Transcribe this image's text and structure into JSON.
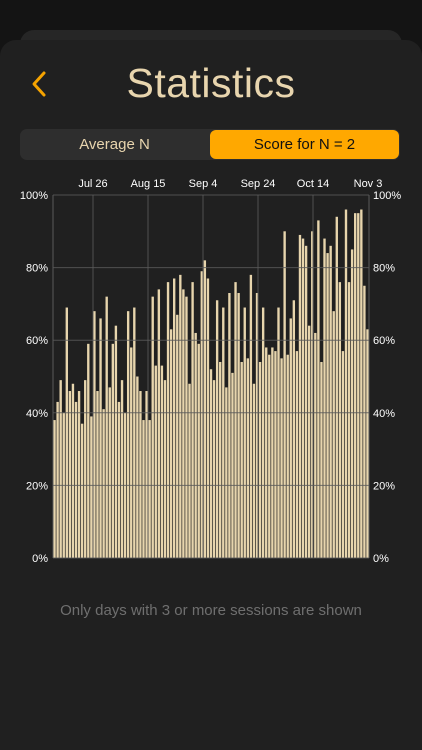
{
  "header": {
    "title": "Statistics",
    "back_icon": "chevron-left-icon"
  },
  "segments": [
    {
      "label": "Average N",
      "selected": false
    },
    {
      "label": "Score for N = 2",
      "selected": true
    }
  ],
  "footnote": "Only days with 3 or more sessions are shown",
  "colors": {
    "accent": "#FFA800",
    "bar": "#E7D5AD",
    "title": "#E8D5AE"
  },
  "chart_data": {
    "type": "bar",
    "x_tick_labels": [
      "Jul 26",
      "Aug 15",
      "Sep 4",
      "Sep 24",
      "Oct 14",
      "Nov 3"
    ],
    "y_tick_labels": [
      "0%",
      "20%",
      "40%",
      "60%",
      "80%",
      "100%"
    ],
    "ylim": [
      0,
      100
    ],
    "grid": true,
    "values": [
      38,
      43,
      49,
      40,
      69,
      46,
      48,
      43,
      46,
      37,
      49,
      59,
      39,
      68,
      46,
      66,
      41,
      72,
      47,
      59,
      64,
      43,
      49,
      40,
      68,
      58,
      69,
      50,
      46,
      38,
      46,
      38,
      72,
      53,
      74,
      53,
      49,
      76,
      63,
      77,
      67,
      78,
      74,
      72,
      48,
      76,
      62,
      59,
      79,
      82,
      77,
      52,
      49,
      71,
      54,
      69,
      47,
      73,
      51,
      76,
      73,
      54,
      69,
      55,
      78,
      48,
      73,
      54,
      69,
      58,
      56,
      58,
      57,
      69,
      55,
      90,
      56,
      66,
      71,
      57,
      89,
      88,
      86,
      64,
      90,
      62,
      93,
      54,
      88,
      84,
      86,
      68,
      94,
      76,
      57,
      96,
      76,
      85,
      95,
      95,
      96,
      75,
      63
    ]
  }
}
